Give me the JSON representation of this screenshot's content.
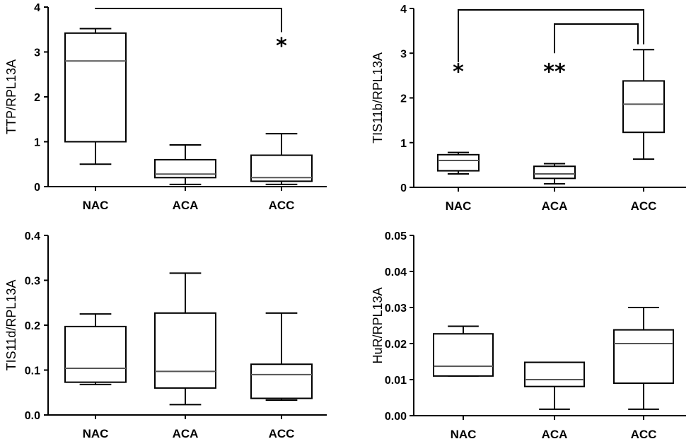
{
  "chart_data": [
    {
      "type": "box",
      "ylabel": "TTP/RPL13A",
      "ylim": [
        0,
        4
      ],
      "yticks": [
        "0",
        "1",
        "2",
        "3",
        "4"
      ],
      "categories": [
        "NAC",
        "ACA",
        "ACC"
      ],
      "boxes": [
        {
          "min": 0.5,
          "q1": 1.0,
          "median": 2.8,
          "q3": 3.42,
          "max": 3.52
        },
        {
          "min": 0.05,
          "q1": 0.2,
          "median": 0.28,
          "q3": 0.6,
          "max": 0.93
        },
        {
          "min": 0.05,
          "q1": 0.12,
          "median": 0.2,
          "q3": 0.7,
          "max": 1.18
        }
      ],
      "brackets": [
        {
          "from": 0,
          "to": 2
        }
      ],
      "stars": [
        {
          "category": 2,
          "label": "*",
          "y": 3.2
        }
      ]
    },
    {
      "type": "box",
      "ylabel": "TIS11b/RPL13A",
      "ylim": [
        0,
        4
      ],
      "yticks": [
        "0",
        "1",
        "2",
        "3",
        "4"
      ],
      "categories": [
        "NAC",
        "ACA",
        "ACC"
      ],
      "boxes": [
        {
          "min": 0.3,
          "q1": 0.37,
          "median": 0.6,
          "q3": 0.73,
          "max": 0.78
        },
        {
          "min": 0.08,
          "q1": 0.2,
          "median": 0.3,
          "q3": 0.47,
          "max": 0.53
        },
        {
          "min": 0.63,
          "q1": 1.23,
          "median": 1.86,
          "q3": 2.38,
          "max": 3.08
        }
      ],
      "brackets": [
        {
          "from": 0,
          "to": 2
        },
        {
          "from": 1,
          "to": 2
        }
      ],
      "stars": [
        {
          "category": 0,
          "label": "*",
          "y": 2.65
        },
        {
          "category": 1,
          "label": "**",
          "y": 2.65
        }
      ]
    },
    {
      "type": "box",
      "ylabel": "TIS11d/RPL13A",
      "ylim": [
        0,
        0.4
      ],
      "yticks": [
        "0.0",
        "0.1",
        "0.2",
        "0.3",
        "0.4"
      ],
      "categories": [
        "NAC",
        "ACA",
        "ACC"
      ],
      "boxes": [
        {
          "min": 0.068,
          "q1": 0.073,
          "median": 0.104,
          "q3": 0.197,
          "max": 0.225
        },
        {
          "min": 0.023,
          "q1": 0.06,
          "median": 0.097,
          "q3": 0.227,
          "max": 0.316
        },
        {
          "min": 0.033,
          "q1": 0.037,
          "median": 0.09,
          "q3": 0.113,
          "max": 0.227
        }
      ],
      "brackets": [],
      "stars": []
    },
    {
      "type": "box",
      "ylabel": "HuR/RPL13A",
      "ylim": [
        0,
        0.05
      ],
      "yticks": [
        "0.00",
        "0.01",
        "0.02",
        "0.03",
        "0.04",
        "0.05"
      ],
      "categories": [
        "NAC",
        "ACA",
        "ACC"
      ],
      "boxes": [
        {
          "min": 0.011,
          "q1": 0.011,
          "median": 0.0137,
          "q3": 0.0227,
          "max": 0.0248
        },
        {
          "min": 0.0018,
          "q1": 0.0081,
          "median": 0.01,
          "q3": 0.0148,
          "max": 0.0148
        },
        {
          "min": 0.0018,
          "q1": 0.009,
          "median": 0.02,
          "q3": 0.0238,
          "max": 0.03
        }
      ],
      "brackets": [],
      "stars": []
    }
  ]
}
